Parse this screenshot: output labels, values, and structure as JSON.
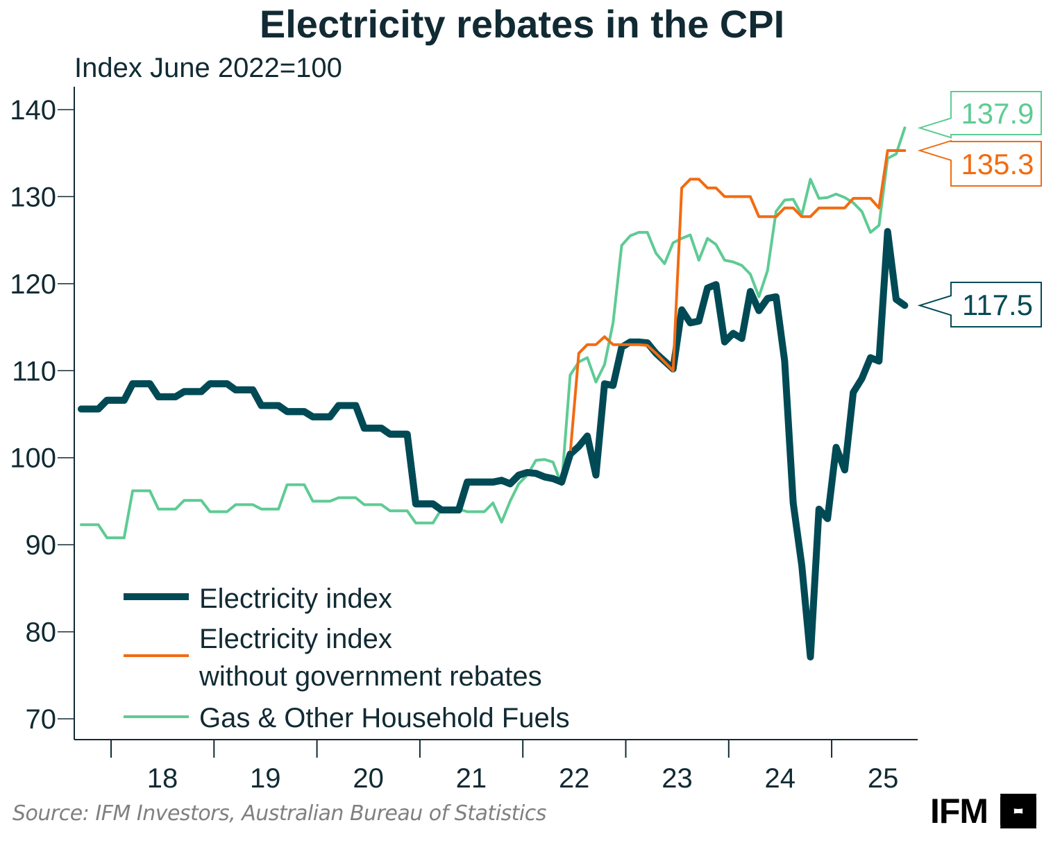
{
  "header": {
    "title": "Electricity rebates in the CPI",
    "subtitle": "Index June 2022=100"
  },
  "footer": {
    "source": "Source: IFM Investors, Australian Bureau of Statistics",
    "logo_text": "IFM"
  },
  "chart_data": {
    "type": "line",
    "title": "Electricity rebates in the CPI",
    "ylabel": "Index June 2022=100",
    "xlabel": "",
    "ylim": [
      70,
      140
    ],
    "yticks": [
      70,
      80,
      90,
      100,
      110,
      120,
      130,
      140
    ],
    "xlim_years": [
      2017.35,
      2025.85
    ],
    "xtick_boundaries": [
      2018,
      2019,
      2020,
      2021,
      2022,
      2023,
      2024,
      2025
    ],
    "xtick_labels": [
      "18",
      "19",
      "20",
      "21",
      "22",
      "23",
      "24",
      "25"
    ],
    "x_start_year": 2017.71,
    "x_step_months": 1,
    "grid": false,
    "legend_position": "bottom-left",
    "series": [
      {
        "name": "Electricity index",
        "color": "#004a55",
        "end_label": "117.5",
        "values": [
          105.6,
          105.6,
          105.6,
          106.6,
          106.6,
          106.6,
          108.5,
          108.5,
          108.5,
          107.0,
          107.0,
          107.0,
          107.6,
          107.6,
          107.6,
          108.5,
          108.5,
          108.5,
          107.8,
          107.8,
          107.8,
          106.0,
          106.0,
          106.0,
          105.3,
          105.3,
          105.3,
          104.7,
          104.7,
          104.7,
          106.0,
          106.0,
          106.0,
          103.4,
          103.4,
          103.4,
          102.7,
          102.7,
          102.7,
          94.7,
          94.7,
          94.7,
          94.0,
          94.0,
          94.0,
          97.2,
          97.2,
          97.2,
          97.2,
          97.4,
          97.0,
          98.0,
          98.3,
          98.2,
          97.8,
          97.6,
          97.2,
          100.4,
          101.3,
          102.5,
          98.0,
          108.5,
          108.3,
          112.7,
          113.3,
          113.3,
          113.2,
          112.0,
          111.1,
          110.2,
          117.0,
          115.5,
          115.7,
          119.5,
          119.9,
          113.3,
          114.3,
          113.7,
          119.1,
          116.9,
          118.3,
          118.5,
          111.1,
          94.8,
          87.6,
          77.1,
          94.1,
          93.0,
          101.2,
          98.6,
          107.5,
          109.1,
          111.5,
          111.1,
          126.0,
          118.2,
          117.5
        ]
      },
      {
        "name": "Electricity index without government rebates",
        "legend_lines": [
          "Electricity index",
          "without government rebates"
        ],
        "color": "#f26b12",
        "end_label": "135.3",
        "values": [
          105.6,
          105.6,
          105.6,
          106.6,
          106.6,
          106.6,
          108.5,
          108.5,
          108.5,
          107.0,
          107.0,
          107.0,
          107.6,
          107.6,
          107.6,
          108.5,
          108.5,
          108.5,
          107.8,
          107.8,
          107.8,
          106.0,
          106.0,
          106.0,
          105.3,
          105.3,
          105.3,
          104.7,
          104.7,
          104.7,
          106.0,
          106.0,
          106.0,
          103.4,
          103.4,
          103.4,
          102.7,
          102.7,
          102.7,
          94.7,
          94.7,
          94.7,
          94.0,
          94.0,
          94.0,
          97.2,
          97.2,
          97.2,
          97.2,
          97.4,
          97.0,
          98.0,
          98.3,
          98.2,
          97.8,
          97.6,
          97.2,
          100.4,
          112.0,
          113.0,
          113.0,
          113.9,
          113.0,
          113.0,
          113.0,
          113.0,
          112.9,
          112.0,
          111.0,
          110.0,
          131.0,
          132.0,
          132.0,
          131.0,
          131.0,
          130.0,
          130.0,
          130.0,
          130.0,
          127.7,
          127.7,
          127.7,
          128.7,
          128.7,
          127.7,
          127.7,
          128.7,
          128.7,
          128.7,
          128.7,
          129.8,
          129.8,
          129.8,
          128.7,
          135.3,
          135.3,
          135.3
        ]
      },
      {
        "name": "Gas & Other Household Fuels",
        "color": "#5ecb94",
        "end_label": "137.9",
        "values": [
          92.3,
          92.3,
          92.3,
          90.8,
          90.8,
          90.8,
          96.2,
          96.2,
          96.2,
          94.1,
          94.1,
          94.1,
          95.1,
          95.1,
          95.1,
          93.8,
          93.8,
          93.8,
          94.6,
          94.6,
          94.6,
          94.1,
          94.1,
          94.1,
          96.9,
          96.9,
          96.9,
          95.0,
          95.0,
          95.0,
          95.4,
          95.4,
          95.4,
          94.6,
          94.6,
          94.6,
          93.9,
          93.9,
          93.9,
          92.5,
          92.5,
          92.5,
          94.1,
          94.1,
          94.1,
          93.8,
          93.8,
          93.8,
          94.8,
          92.6,
          95.0,
          97.0,
          98.0,
          99.7,
          99.8,
          99.5,
          96.9,
          109.5,
          111.0,
          111.5,
          108.7,
          110.7,
          115.5,
          124.4,
          125.5,
          125.9,
          125.9,
          123.5,
          122.3,
          124.7,
          125.2,
          125.6,
          122.7,
          125.2,
          124.5,
          122.7,
          122.5,
          122.1,
          121.1,
          118.5,
          121.5,
          128.3,
          129.6,
          129.7,
          127.9,
          132.0,
          129.8,
          129.9,
          130.3,
          129.9,
          129.3,
          128.3,
          125.9,
          126.7,
          134.4,
          134.9,
          137.9
        ]
      }
    ]
  }
}
